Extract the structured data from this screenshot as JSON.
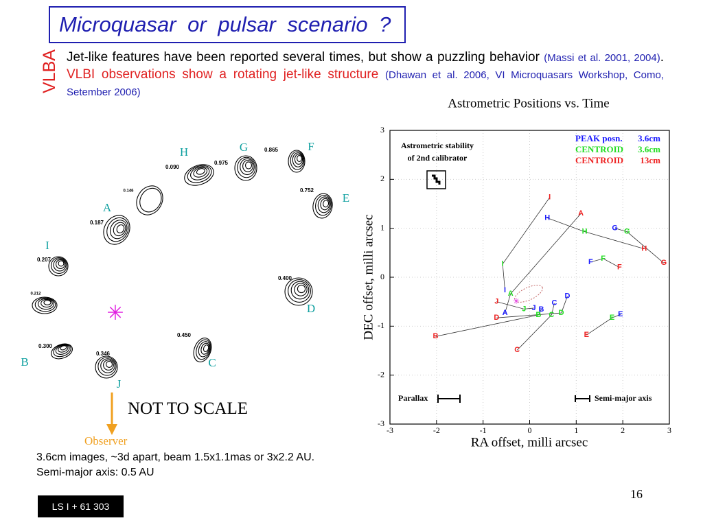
{
  "title": "Microquasar or pulsar scenario ?",
  "side_label": "VLBA",
  "intro": {
    "text1": "Jet-like features have been reported several times, but show a puzzling behavior",
    "ref1": "(Massi et al. 2001, 2004)",
    "sep": ".",
    "text2": "VLBI observations show a rotating jet-like structure",
    "ref2": "(Dhawan et al. 2006, VI Microquasars Workshop, Como, Setember 2006)"
  },
  "left_image": {
    "letters": [
      "H",
      "G",
      "F",
      "E",
      "A",
      "I",
      "D",
      "B",
      "C",
      "J"
    ],
    "fluxes": [
      "0.090",
      "0.975",
      "0.865",
      "0.146",
      "0.752",
      "0.187",
      "0.207",
      "0.212",
      "0.300",
      "0.346",
      "0.450",
      "0.400"
    ],
    "note": "NOT TO SCALE",
    "observer": "Observer"
  },
  "caption": [
    "3.6cm images, ~3d apart, beam 1.5x1.1mas or 3x2.2 AU.",
    "Semi-major axis: 0.5 AU"
  ],
  "page_number": "16",
  "footer": "LS I + 61 303",
  "chart_data": {
    "type": "scatter",
    "title": "Astrometric  Positions  vs.  Time",
    "xlabel": "RA  offset, milli arcsec",
    "ylabel": "DEC  offset, milli arcsec",
    "xlim": [
      -3,
      3
    ],
    "ylim": [
      -3,
      3
    ],
    "xticks": [
      -3,
      -2,
      -1,
      0,
      1,
      2,
      3
    ],
    "yticks": [
      -3,
      -2,
      -1,
      0,
      1,
      2,
      3
    ],
    "grid": true,
    "inset": [
      "Astrometric stability",
      "of  2nd  calibrator"
    ],
    "parallax_label": "Parallax",
    "semimajor_label": "Semi-major axis",
    "series": [
      {
        "name": "PEAK posn.",
        "band": "3.6cm",
        "color": "#1a1aff",
        "labels": [
          "H",
          "G",
          "F",
          "I",
          "C",
          "D",
          "E",
          "A",
          "J",
          "B"
        ],
        "x": [
          0.38,
          1.83,
          1.31,
          -0.53,
          0.53,
          0.81,
          1.95,
          -0.53,
          0.09,
          0.25
        ],
        "values": [
          1.21,
          1.0,
          0.31,
          -0.27,
          -0.53,
          -0.39,
          -0.76,
          -0.73,
          -0.63,
          -0.66
        ]
      },
      {
        "name": "CENTROID",
        "band": "3.6cm",
        "color": "#22dd22",
        "labels": [
          "I",
          "A",
          "H",
          "G",
          "F",
          "E",
          "D",
          "C",
          "B",
          "J"
        ],
        "x": [
          -0.58,
          -0.41,
          1.18,
          2.09,
          1.58,
          1.77,
          0.68,
          0.47,
          0.19,
          -0.12
        ],
        "values": [
          0.27,
          -0.34,
          0.93,
          0.93,
          0.38,
          -0.83,
          -0.73,
          -0.77,
          -0.77,
          -0.65
        ]
      },
      {
        "name": "CENTROID",
        "band": "13cm",
        "color": "#ee2222",
        "labels": [
          "I",
          "A",
          "H",
          "G",
          "F",
          "E",
          "D",
          "C",
          "B",
          "J"
        ],
        "x": [
          0.43,
          1.1,
          2.46,
          2.88,
          1.93,
          1.22,
          -0.71,
          -0.27,
          -2.02,
          -0.71
        ],
        "values": [
          1.63,
          1.3,
          0.58,
          0.29,
          0.2,
          -1.18,
          -0.83,
          -1.49,
          -1.21,
          -0.5
        ]
      }
    ]
  }
}
